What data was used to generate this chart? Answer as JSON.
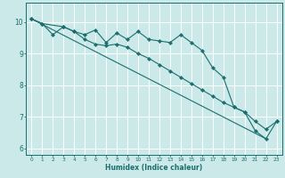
{
  "xlabel": "Humidex (Indice chaleur)",
  "ylabel": "",
  "bg_color": "#cce9e9",
  "line_color": "#1a6e6e",
  "grid_color": "#ffffff",
  "xlim": [
    -0.5,
    23.5
  ],
  "ylim": [
    5.8,
    10.6
  ],
  "yticks": [
    6,
    7,
    8,
    9,
    10
  ],
  "xticks": [
    0,
    1,
    2,
    3,
    4,
    5,
    6,
    7,
    8,
    9,
    10,
    11,
    12,
    13,
    14,
    15,
    16,
    17,
    18,
    19,
    20,
    21,
    22,
    23
  ],
  "line1_x": [
    0,
    1,
    2,
    3,
    4,
    5,
    6,
    7,
    8,
    9,
    10,
    11,
    12,
    13,
    14,
    15,
    16,
    17,
    18,
    19,
    20,
    21,
    22,
    23
  ],
  "line1_y": [
    10.1,
    9.95,
    9.6,
    9.85,
    9.7,
    9.6,
    9.75,
    9.35,
    9.65,
    9.45,
    9.7,
    9.45,
    9.4,
    9.35,
    9.6,
    9.35,
    9.1,
    8.55,
    8.25,
    7.3,
    7.15,
    6.55,
    6.3,
    6.85
  ],
  "line2_x": [
    0,
    1,
    3,
    4,
    5,
    6,
    7,
    8,
    9,
    10,
    11,
    12,
    13,
    14,
    15,
    16,
    17,
    18,
    19,
    20,
    21,
    22,
    23
  ],
  "line2_y": [
    10.1,
    9.95,
    9.85,
    9.7,
    9.45,
    9.3,
    9.25,
    9.3,
    9.2,
    9.0,
    8.85,
    8.65,
    8.45,
    8.25,
    8.05,
    7.85,
    7.65,
    7.45,
    7.3,
    7.15,
    6.85,
    6.6,
    6.85
  ],
  "line3_x": [
    0,
    22
  ],
  "line3_y": [
    10.1,
    6.3
  ]
}
